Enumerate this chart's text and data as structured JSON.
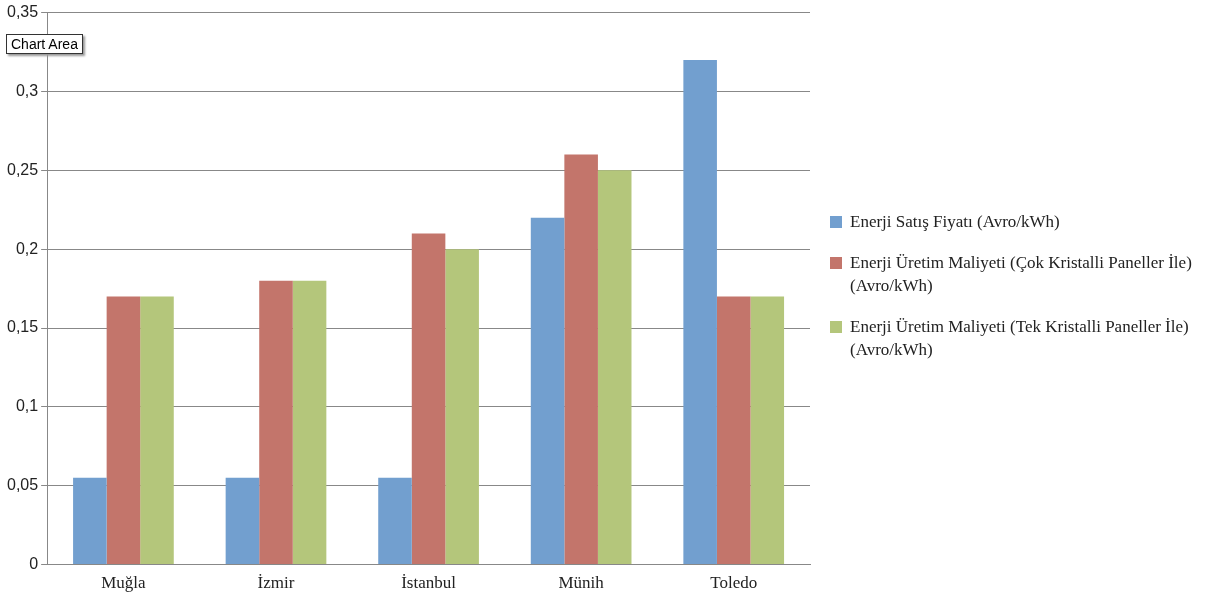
{
  "chart_data": {
    "type": "bar",
    "categories": [
      "Muğla",
      "İzmir",
      "İstanbul",
      "Münih",
      "Toledo"
    ],
    "series": [
      {
        "name": "Enerji Satış Fiyatı (Avro/kWh)",
        "color": "#729fcf",
        "values": [
          0.055,
          0.055,
          0.055,
          0.22,
          0.32
        ]
      },
      {
        "name": "Enerji Üretim Maliyeti (Çok Kristalli Paneller İle)(Avro/kWh)",
        "color": "#c3756b",
        "values": [
          0.17,
          0.18,
          0.21,
          0.26,
          0.17
        ]
      },
      {
        "name": "Enerji Üretim Maliyeti (Tek Kristalli Paneller İle)(Avro/kWh)",
        "color": "#b4c67b",
        "values": [
          0.17,
          0.18,
          0.2,
          0.25,
          0.17
        ]
      }
    ],
    "ylim": [
      0,
      0.35
    ],
    "yticks": [
      0,
      {
        "value": 0.05,
        "label": "0,05"
      },
      {
        "value": 0.1,
        "label": "0,1"
      },
      {
        "value": 0.15,
        "label": "0,15"
      },
      {
        "value": 0.2,
        "label": "0,2"
      },
      {
        "value": 0.25,
        "label": "0,25"
      },
      {
        "value": 0.3,
        "label": "0,3"
      },
      {
        "value": 0.35,
        "label": "0,35"
      }
    ],
    "grid": "y",
    "legend": "right",
    "annotations": [
      "Chart Area"
    ]
  }
}
